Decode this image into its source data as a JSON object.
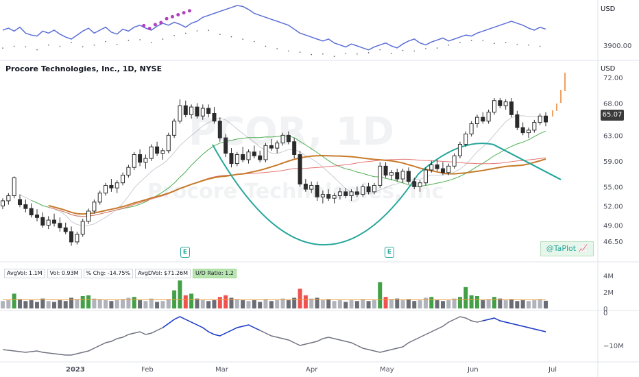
{
  "top_panel": {
    "currency": "USD",
    "price_label": "3900.00"
  },
  "header": {
    "title": "Procore Technologies, Inc., 1D, NYSE"
  },
  "price_axis": {
    "currency": "USD",
    "ticks": [
      "72.00",
      "68.00",
      "63.00",
      "59.00",
      "55.00",
      "52.00",
      "49.00",
      "46.50"
    ],
    "current": "65.07"
  },
  "volume_axis": {
    "ticks": [
      "4M",
      "2M",
      "0"
    ]
  },
  "osc_axis": {
    "ticks": [
      "0",
      "−10M"
    ]
  },
  "time_axis": {
    "labels": [
      "2023",
      "Feb",
      "Mar",
      "Apr",
      "May",
      "Jun",
      "Jul"
    ]
  },
  "stats": {
    "avgvol": "AvgVol: 1.1M",
    "vol": "Vol: 0.93M",
    "chg": "% Chg: -14.75%",
    "avgdvol": "AvgDVol: $71.26M",
    "ud": "U/D Ratio: 1.2"
  },
  "attribution": "@TaPlot 📈",
  "earnings_badge": "E",
  "watermark": {
    "ticker": "PCOR, 1D",
    "name": "Procore Technologies, Inc"
  },
  "colors": {
    "up": "#ffffff",
    "down": "#2a2a2a",
    "vol_up": "#43a047",
    "vol_down": "#ef5350",
    "accent": "#26a69a",
    "ma_blue": "#2e3fa8",
    "ma_orange": "#c77a2a",
    "ma_green": "#4caf50",
    "ma_red": "#e57373",
    "rs_line": "#5b6fd6"
  },
  "chart_data": {
    "type": "candlestick",
    "candles": [
      [
        52.0,
        53.2,
        51.5,
        52.8
      ],
      [
        52.8,
        54.0,
        52.2,
        53.6
      ],
      [
        53.6,
        56.6,
        53.2,
        56.4
      ],
      [
        53.0,
        53.8,
        51.8,
        52.2
      ],
      [
        52.2,
        53.0,
        51.0,
        51.6
      ],
      [
        51.6,
        52.4,
        50.2,
        50.6
      ],
      [
        50.6,
        51.5,
        49.6,
        50.2
      ],
      [
        50.2,
        51.0,
        48.6,
        49.0
      ],
      [
        49.0,
        50.4,
        48.4,
        49.8
      ],
      [
        49.8,
        50.8,
        48.8,
        49.3
      ],
      [
        49.3,
        50.2,
        48.0,
        48.6
      ],
      [
        48.6,
        49.4,
        47.6,
        48.0
      ],
      [
        48.0,
        48.8,
        45.8,
        46.4
      ],
      [
        46.4,
        48.0,
        46.0,
        47.6
      ],
      [
        47.6,
        50.0,
        47.2,
        49.6
      ],
      [
        49.6,
        51.6,
        49.2,
        51.2
      ],
      [
        51.2,
        53.0,
        50.8,
        52.6
      ],
      [
        52.6,
        54.4,
        52.2,
        54.0
      ],
      [
        54.0,
        55.6,
        53.6,
        55.2
      ],
      [
        55.2,
        56.2,
        54.2,
        54.8
      ],
      [
        54.8,
        56.0,
        54.0,
        55.6
      ],
      [
        55.6,
        57.2,
        55.2,
        56.8
      ],
      [
        56.8,
        58.4,
        56.4,
        58.0
      ],
      [
        58.0,
        60.4,
        57.6,
        60.0
      ],
      [
        60.0,
        60.8,
        58.2,
        58.8
      ],
      [
        58.8,
        60.0,
        57.8,
        59.4
      ],
      [
        59.4,
        61.6,
        59.0,
        61.2
      ],
      [
        61.2,
        62.0,
        59.8,
        60.2
      ],
      [
        60.2,
        61.0,
        59.2,
        60.6
      ],
      [
        60.6,
        63.4,
        60.2,
        63.0
      ],
      [
        63.0,
        65.6,
        62.6,
        65.2
      ],
      [
        65.2,
        68.6,
        64.8,
        67.6
      ],
      [
        67.6,
        68.4,
        65.8,
        66.2
      ],
      [
        66.2,
        67.8,
        65.6,
        67.4
      ],
      [
        67.4,
        68.0,
        65.6,
        66.0
      ],
      [
        66.0,
        67.8,
        65.4,
        67.2
      ],
      [
        67.2,
        67.8,
        65.8,
        66.4
      ],
      [
        66.4,
        67.4,
        64.8,
        65.2
      ],
      [
        65.2,
        65.8,
        62.0,
        62.6
      ],
      [
        62.6,
        63.2,
        59.6,
        60.2
      ],
      [
        60.2,
        61.0,
        58.0,
        58.6
      ],
      [
        58.6,
        60.4,
        58.2,
        60.0
      ],
      [
        60.0,
        61.2,
        58.8,
        59.2
      ],
      [
        59.2,
        60.8,
        58.6,
        60.4
      ],
      [
        60.4,
        61.4,
        59.4,
        59.8
      ],
      [
        59.8,
        60.6,
        58.8,
        59.2
      ],
      [
        59.2,
        61.8,
        58.8,
        61.4
      ],
      [
        61.4,
        62.4,
        60.6,
        61.0
      ],
      [
        61.0,
        62.2,
        60.2,
        61.8
      ],
      [
        61.8,
        63.4,
        61.4,
        63.0
      ],
      [
        63.0,
        63.6,
        61.6,
        62.0
      ],
      [
        62.0,
        62.6,
        59.4,
        60.0
      ],
      [
        60.0,
        60.6,
        55.0,
        55.4
      ],
      [
        55.4,
        56.2,
        54.2,
        54.6
      ],
      [
        54.6,
        55.8,
        54.0,
        55.2
      ],
      [
        55.2,
        55.8,
        52.8,
        53.4
      ],
      [
        53.4,
        54.4,
        52.4,
        53.8
      ],
      [
        53.8,
        54.6,
        52.8,
        53.2
      ],
      [
        53.2,
        54.0,
        52.4,
        53.6
      ],
      [
        53.6,
        54.8,
        53.0,
        54.2
      ],
      [
        54.2,
        54.8,
        53.2,
        53.6
      ],
      [
        53.6,
        54.6,
        52.8,
        54.2
      ],
      [
        54.2,
        55.0,
        53.4,
        53.8
      ],
      [
        53.8,
        55.4,
        53.4,
        55.0
      ],
      [
        55.0,
        55.6,
        53.8,
        54.2
      ],
      [
        54.2,
        55.6,
        53.8,
        55.2
      ],
      [
        55.2,
        58.8,
        54.8,
        58.2
      ],
      [
        58.2,
        58.8,
        56.4,
        56.8
      ],
      [
        56.8,
        57.6,
        56.0,
        57.2
      ],
      [
        57.2,
        57.8,
        55.8,
        56.2
      ],
      [
        56.2,
        57.8,
        55.6,
        57.4
      ],
      [
        57.4,
        58.0,
        55.4,
        55.8
      ],
      [
        55.8,
        56.4,
        54.6,
        55.0
      ],
      [
        55.0,
        56.0,
        54.2,
        55.6
      ],
      [
        55.6,
        58.0,
        55.2,
        57.6
      ],
      [
        57.6,
        59.0,
        57.2,
        58.4
      ],
      [
        58.4,
        59.2,
        57.4,
        57.8
      ],
      [
        57.8,
        58.8,
        56.8,
        57.2
      ],
      [
        57.2,
        58.6,
        56.8,
        58.2
      ],
      [
        58.2,
        60.2,
        57.8,
        59.8
      ],
      [
        59.8,
        62.0,
        59.4,
        61.6
      ],
      [
        61.6,
        63.6,
        61.2,
        63.2
      ],
      [
        63.2,
        65.2,
        62.8,
        64.8
      ],
      [
        64.8,
        66.2,
        64.2,
        65.8
      ],
      [
        65.8,
        66.6,
        64.8,
        65.2
      ],
      [
        65.2,
        67.0,
        64.8,
        66.6
      ],
      [
        66.6,
        68.8,
        66.2,
        68.4
      ],
      [
        68.4,
        68.8,
        67.2,
        67.6
      ],
      [
        67.6,
        68.6,
        67.0,
        68.2
      ],
      [
        68.2,
        68.8,
        65.8,
        66.2
      ],
      [
        66.2,
        66.8,
        63.8,
        64.2
      ],
      [
        64.2,
        65.0,
        63.0,
        63.4
      ],
      [
        63.4,
        64.2,
        62.6,
        63.8
      ],
      [
        63.8,
        65.4,
        63.4,
        65.0
      ],
      [
        65.0,
        66.4,
        64.6,
        66.0
      ],
      [
        66.0,
        66.6,
        64.4,
        65.07
      ]
    ],
    "volume_millions": [
      0.9,
      1.0,
      1.8,
      1.1,
      0.9,
      1.0,
      0.8,
      1.2,
      0.9,
      0.8,
      1.0,
      0.9,
      1.3,
      1.1,
      1.5,
      1.6,
      1.2,
      1.1,
      1.0,
      0.9,
      1.0,
      1.1,
      1.3,
      1.4,
      1.0,
      0.9,
      1.2,
      0.8,
      0.9,
      1.1,
      2.2,
      3.4,
      1.6,
      1.8,
      1.2,
      1.0,
      0.9,
      1.0,
      1.4,
      1.6,
      1.3,
      1.1,
      1.0,
      0.9,
      1.0,
      0.8,
      1.1,
      0.9,
      1.0,
      1.2,
      1.0,
      1.3,
      2.4,
      1.6,
      1.2,
      1.3,
      1.0,
      1.1,
      0.9,
      1.0,
      0.8,
      1.0,
      0.9,
      1.1,
      0.9,
      1.0,
      3.2,
      1.4,
      1.1,
      1.2,
      1.0,
      1.1,
      0.9,
      1.0,
      1.3,
      1.4,
      1.0,
      0.9,
      1.0,
      1.2,
      1.4,
      2.6,
      1.6,
      1.5,
      1.0,
      1.1,
      1.4,
      1.2,
      1.0,
      1.1,
      0.9,
      1.0,
      0.9,
      1.0,
      1.1,
      0.93
    ],
    "avg_vol_millions": 1.1
  }
}
